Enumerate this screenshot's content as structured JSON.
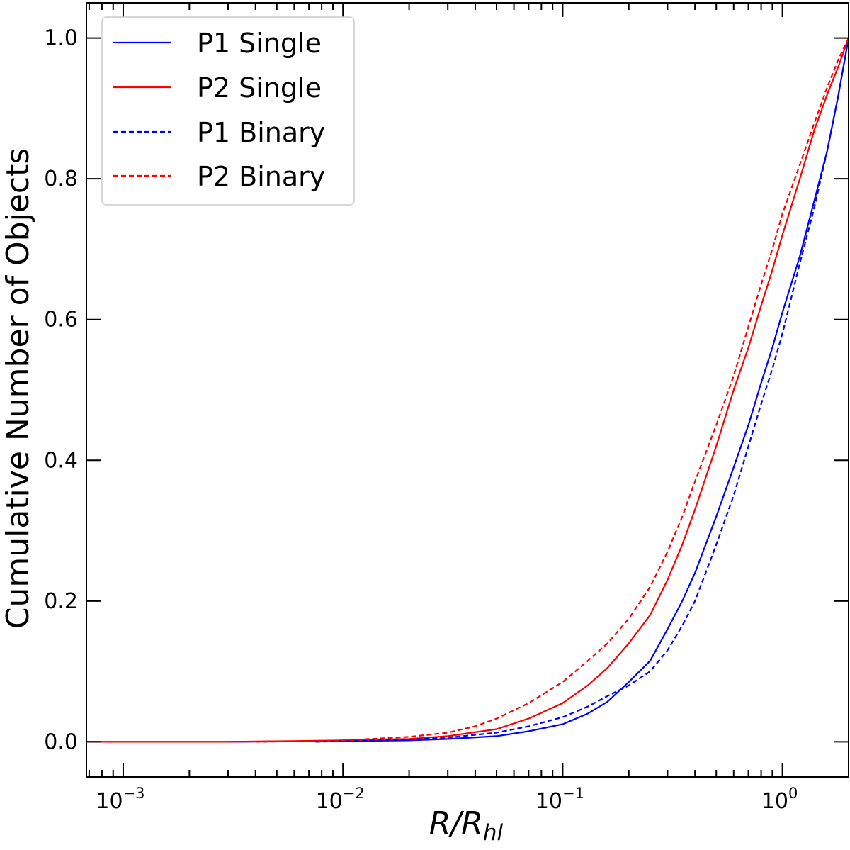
{
  "chart_data": {
    "type": "line",
    "title": "",
    "xlabel": {
      "base": "R/R",
      "sub": "hl"
    },
    "ylabel": "Cumulative Number of Objects",
    "xscale": "log",
    "xlim": [
      0.00068,
      2.0
    ],
    "ylim": [
      -0.05,
      1.05
    ],
    "grid": false,
    "legend_position": "top-left",
    "x_ticks": [
      {
        "value": 0.001,
        "base": "10",
        "exp": "−3"
      },
      {
        "value": 0.01,
        "base": "10",
        "exp": "−2"
      },
      {
        "value": 0.1,
        "base": "10",
        "exp": "−1"
      },
      {
        "value": 1,
        "base": "10",
        "exp": "0"
      }
    ],
    "y_ticks": [
      {
        "value": 0.0,
        "label": "0.0"
      },
      {
        "value": 0.2,
        "label": "0.2"
      },
      {
        "value": 0.4,
        "label": "0.4"
      },
      {
        "value": 0.6,
        "label": "0.6"
      },
      {
        "value": 0.8,
        "label": "0.8"
      },
      {
        "value": 1.0,
        "label": "1.0"
      }
    ],
    "series": [
      {
        "name": "P1 Single",
        "color": "#0000ff",
        "style": "solid",
        "x": [
          0.00068,
          0.001,
          0.003,
          0.01,
          0.02,
          0.03,
          0.05,
          0.07,
          0.1,
          0.13,
          0.16,
          0.2,
          0.25,
          0.3,
          0.35,
          0.4,
          0.5,
          0.6,
          0.7,
          0.8,
          0.9,
          1.0,
          1.2,
          1.4,
          1.6,
          1.8,
          2.0
        ],
        "values": [
          0.0,
          0.0,
          0.0,
          0.001,
          0.002,
          0.004,
          0.008,
          0.015,
          0.025,
          0.04,
          0.057,
          0.085,
          0.115,
          0.16,
          0.2,
          0.24,
          0.32,
          0.39,
          0.45,
          0.51,
          0.56,
          0.61,
          0.69,
          0.77,
          0.84,
          0.92,
          1.0
        ]
      },
      {
        "name": "P2 Single",
        "color": "#ff0000",
        "style": "solid",
        "x": [
          0.00068,
          0.001,
          0.003,
          0.01,
          0.02,
          0.03,
          0.05,
          0.07,
          0.1,
          0.13,
          0.16,
          0.2,
          0.25,
          0.3,
          0.35,
          0.4,
          0.5,
          0.6,
          0.7,
          0.8,
          0.9,
          1.0,
          1.2,
          1.4,
          1.6,
          1.8,
          2.0
        ],
        "values": [
          0.0,
          0.0,
          0.0,
          0.002,
          0.004,
          0.008,
          0.018,
          0.033,
          0.055,
          0.08,
          0.105,
          0.14,
          0.18,
          0.23,
          0.28,
          0.33,
          0.42,
          0.5,
          0.56,
          0.62,
          0.67,
          0.72,
          0.8,
          0.87,
          0.92,
          0.96,
          1.0
        ]
      },
      {
        "name": "P1 Binary",
        "color": "#0000ff",
        "style": "dashed",
        "x": [
          0.0075,
          0.01,
          0.02,
          0.03,
          0.05,
          0.07,
          0.1,
          0.13,
          0.16,
          0.2,
          0.25,
          0.3,
          0.35,
          0.4,
          0.5,
          0.6,
          0.7,
          0.8,
          0.9,
          1.0,
          1.2,
          1.4,
          1.6,
          1.8,
          2.0
        ],
        "values": [
          0.0,
          0.001,
          0.003,
          0.006,
          0.013,
          0.022,
          0.035,
          0.05,
          0.065,
          0.08,
          0.1,
          0.13,
          0.165,
          0.2,
          0.28,
          0.35,
          0.42,
          0.48,
          0.53,
          0.58,
          0.68,
          0.76,
          0.84,
          0.92,
          1.0
        ]
      },
      {
        "name": "P2 Binary",
        "color": "#ff0000",
        "style": "dashed",
        "x": [
          0.004,
          0.007,
          0.01,
          0.02,
          0.03,
          0.04,
          0.05,
          0.07,
          0.1,
          0.13,
          0.16,
          0.2,
          0.25,
          0.3,
          0.35,
          0.4,
          0.5,
          0.6,
          0.7,
          0.8,
          0.9,
          1.0,
          1.2,
          1.4,
          1.6,
          1.8,
          2.0
        ],
        "values": [
          0.0,
          0.001,
          0.002,
          0.007,
          0.013,
          0.022,
          0.033,
          0.055,
          0.085,
          0.115,
          0.14,
          0.175,
          0.22,
          0.27,
          0.32,
          0.37,
          0.45,
          0.52,
          0.59,
          0.65,
          0.7,
          0.75,
          0.82,
          0.88,
          0.93,
          0.97,
          1.0
        ]
      }
    ]
  }
}
